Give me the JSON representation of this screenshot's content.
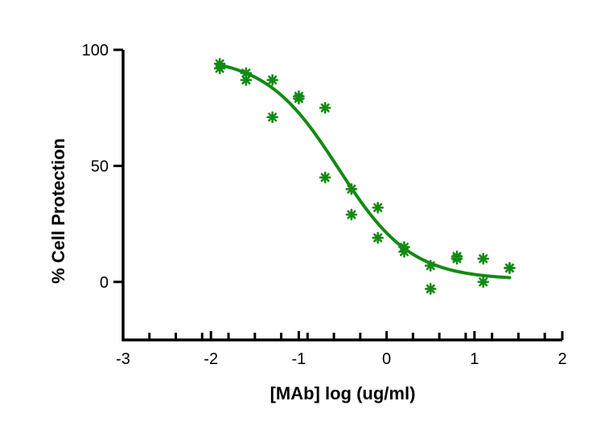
{
  "chart_data": {
    "type": "scatter",
    "title": "",
    "xlabel": "[MAb] log (ug/ml)",
    "ylabel": "% Cell Protection",
    "xlim": [
      -3,
      2
    ],
    "ylim": [
      -25,
      100
    ],
    "x_ticks": [
      -3,
      -2,
      -1,
      0,
      1,
      2
    ],
    "x_minor_ticks": [
      -2.7,
      -2.4,
      -2.1,
      -1.8,
      -1.5,
      -1.2,
      -0.9,
      -0.6,
      -0.3,
      0.3,
      0.6,
      0.9,
      1.2,
      1.5,
      1.8
    ],
    "y_ticks": [
      0,
      50,
      100
    ],
    "grid": false,
    "color": "#138a13",
    "series": [
      {
        "points": [
          {
            "x": -1.9,
            "y": 92
          },
          {
            "x": -1.9,
            "y": 94
          },
          {
            "x": -1.6,
            "y": 87
          },
          {
            "x": -1.6,
            "y": 90
          },
          {
            "x": -1.3,
            "y": 71
          },
          {
            "x": -1.3,
            "y": 87
          },
          {
            "x": -1.0,
            "y": 79
          },
          {
            "x": -1.0,
            "y": 80
          },
          {
            "x": -0.7,
            "y": 45
          },
          {
            "x": -0.7,
            "y": 75
          },
          {
            "x": -0.4,
            "y": 29
          },
          {
            "x": -0.4,
            "y": 40
          },
          {
            "x": -0.1,
            "y": 19
          },
          {
            "x": -0.1,
            "y": 32
          },
          {
            "x": 0.2,
            "y": 13
          },
          {
            "x": 0.2,
            "y": 15
          },
          {
            "x": 0.5,
            "y": -3
          },
          {
            "x": 0.5,
            "y": 7
          },
          {
            "x": 0.8,
            "y": 10
          },
          {
            "x": 0.8,
            "y": 11
          },
          {
            "x": 1.1,
            "y": 0
          },
          {
            "x": 1.1,
            "y": 10
          },
          {
            "x": 1.4,
            "y": 6
          },
          {
            "x": 1.4,
            "y": 6
          }
        ],
        "fit": {
          "model": "four-parameter logistic",
          "top": 97,
          "bottom": 1,
          "log_ec50": -0.55,
          "hill_slope": 1.05,
          "x_range": [
            -1.9,
            1.4
          ]
        }
      }
    ]
  }
}
